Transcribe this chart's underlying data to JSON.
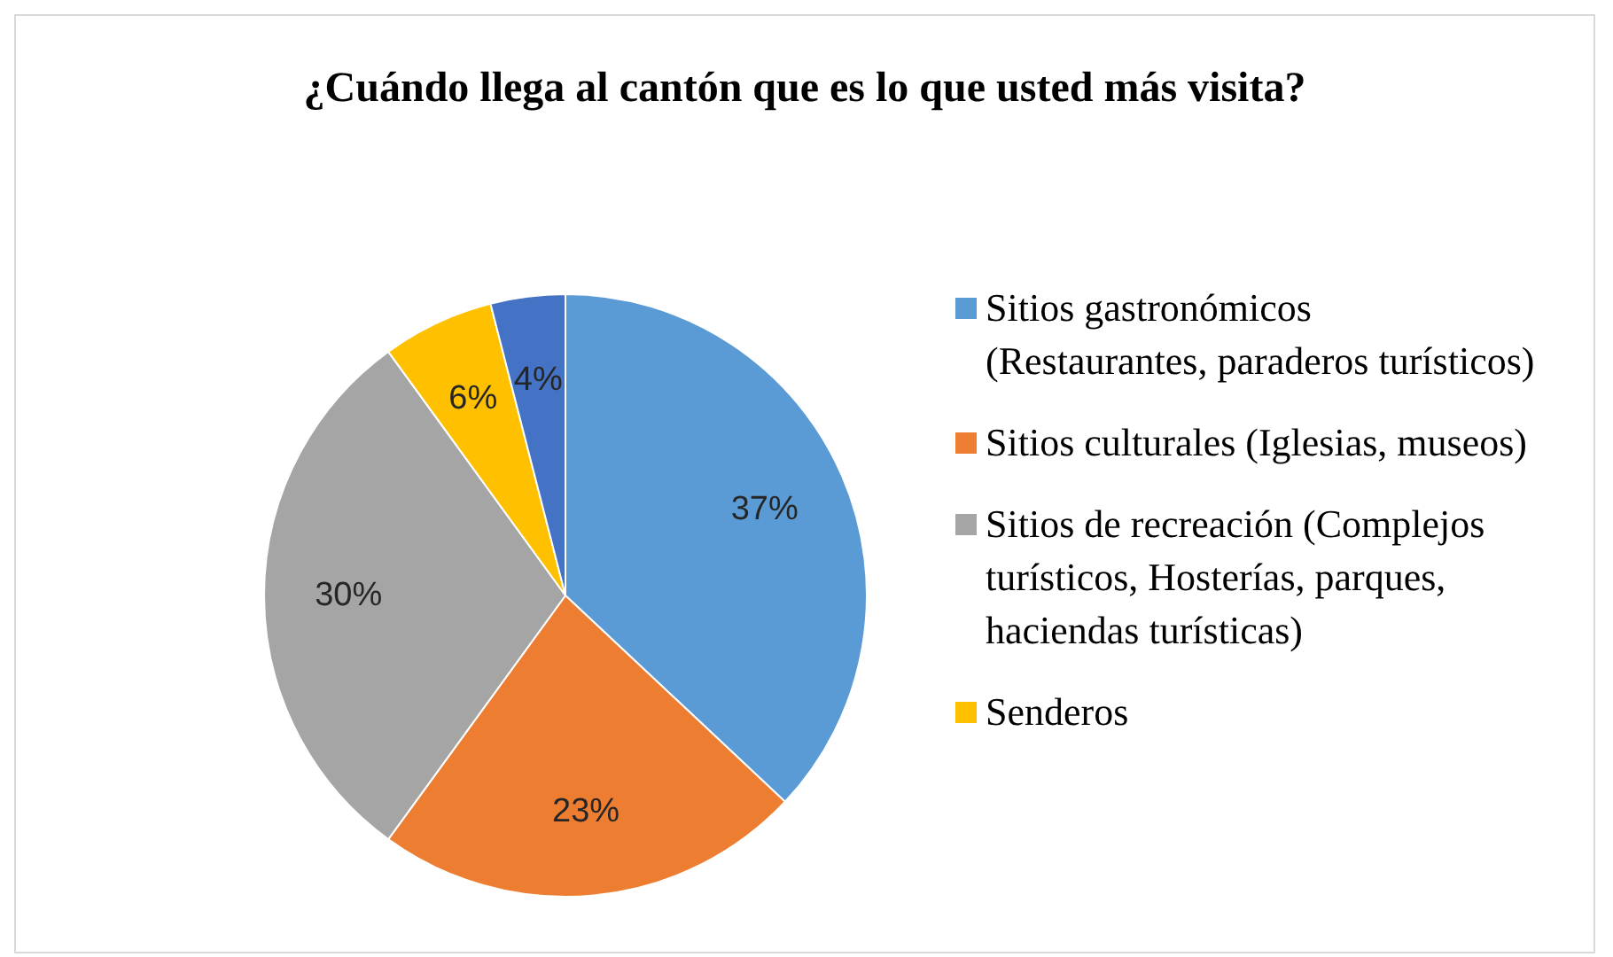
{
  "chart_data": {
    "type": "pie",
    "title": "¿Cuándo llega al cantón que es lo que usted más visita?",
    "categories": [
      "Sitios gastronómicos (Restaurantes, paraderos turísticos)",
      "Sitios culturales (Iglesias, museos)",
      "Sitios de recreación (Complejos turísticos, Hosterías, parques, haciendas turísticas)",
      "Senderos",
      null
    ],
    "values": [
      37,
      23,
      30,
      6,
      4
    ],
    "value_labels": [
      "37%",
      "23%",
      "30%",
      "6%",
      "4%"
    ],
    "colors": [
      "#5b9bd5",
      "#ed7d31",
      "#a5a5a5",
      "#ffc000",
      "#4472c4"
    ],
    "legend": "right"
  }
}
